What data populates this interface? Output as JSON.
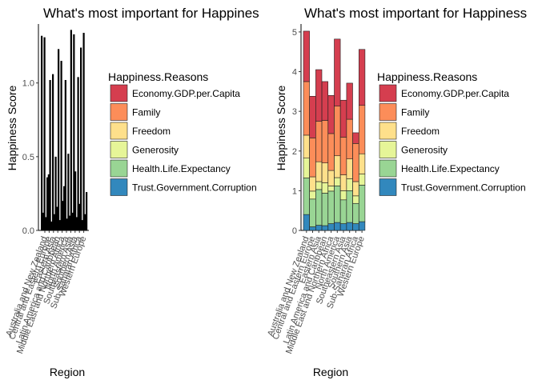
{
  "chart_data": [
    {
      "type": "bar",
      "title": "What's most important for Happines",
      "xlabel": "Region",
      "ylabel": "Happiness Score",
      "ylim": [
        0,
        1.4
      ],
      "yticks": [
        "0.0",
        "0.5",
        "1.0"
      ],
      "categories": [
        "Australia and New Zealand",
        "Central and Eastern Europe",
        "Eastern Asia",
        "Latin America and Caribbean",
        "Middle East and Northern Africa",
        "North America",
        "Southeastern Asia",
        "Southern Asia",
        "Sub-Saharan Africa",
        "Western Europe"
      ],
      "bars": [
        1.32,
        0.12,
        1.31,
        0.09,
        0.36,
        0.38,
        1.02,
        0.06,
        1.06,
        0.11,
        0.5,
        0.16,
        1.23,
        0.07,
        1.15,
        0.2,
        0.3,
        1.02,
        0.08,
        0.52,
        0.1,
        1.36,
        0.12,
        1.33,
        0.4,
        0.09,
        1.04,
        0.18,
        1.24,
        0.07,
        1.34,
        0.11,
        0.26
      ],
      "legend": {
        "title": "Happiness.Reasons",
        "placement": "right",
        "entries": [
          "Economy.GDP.per.Capita",
          "Family",
          "Freedom",
          "Generosity",
          "Health.Life.Expectancy",
          "Trust.Government.Corruption"
        ]
      }
    },
    {
      "type": "bar",
      "stacked": true,
      "title": "What's most important for Happiness",
      "xlabel": "Region",
      "ylabel": "Happiness Score",
      "ylim": [
        0,
        5.2
      ],
      "yticks": [
        "0",
        "1",
        "2",
        "3",
        "4",
        "5"
      ],
      "categories": [
        "Australia and New Zealand",
        "Central and Eastern Europe",
        "Eastern Asia",
        "Latin America and Caribbean",
        "Middle East and Northern Africa",
        "North America",
        "Southeastern Asia",
        "Southern Asia",
        "Sub-Saharan Africa",
        "Western Europe"
      ],
      "series": [
        {
          "name": "Trust.Government.Corruption",
          "color": "#3288BD",
          "values": [
            0.4,
            0.09,
            0.13,
            0.12,
            0.17,
            0.2,
            0.17,
            0.2,
            0.17,
            0.22
          ]
        },
        {
          "name": "Health.Life.Expectancy",
          "color": "#99D594",
          "values": [
            0.92,
            0.7,
            0.9,
            0.82,
            0.82,
            0.92,
            0.6,
            0.8,
            0.51,
            0.92
          ]
        },
        {
          "name": "Generosity",
          "color": "#E6F598",
          "values": [
            0.5,
            0.2,
            0.2,
            0.26,
            0.13,
            0.21,
            0.23,
            0.3,
            0.19,
            0.28
          ]
        },
        {
          "name": "Freedom",
          "color": "#FEE08B",
          "values": [
            0.58,
            0.36,
            0.5,
            0.5,
            0.39,
            0.55,
            0.4,
            0.5,
            0.36,
            0.51
          ]
        },
        {
          "name": "Family",
          "color": "#FC8D59",
          "values": [
            1.35,
            0.98,
            1.02,
            1.07,
            0.93,
            1.25,
            0.95,
            1.0,
            0.96,
            1.22
          ]
        },
        {
          "name": "Economy.GDP.per.Capita",
          "color": "#D53E4F",
          "values": [
            1.27,
            1.05,
            1.3,
            0.98,
            0.96,
            1.69,
            0.93,
            0.91,
            0.27,
            1.41
          ]
        }
      ],
      "legend": {
        "title": "Happiness.Reasons",
        "placement": "right",
        "entries": [
          "Economy.GDP.per.Capita",
          "Family",
          "Freedom",
          "Generosity",
          "Health.Life.Expectancy",
          "Trust.Government.Corruption"
        ]
      }
    }
  ]
}
